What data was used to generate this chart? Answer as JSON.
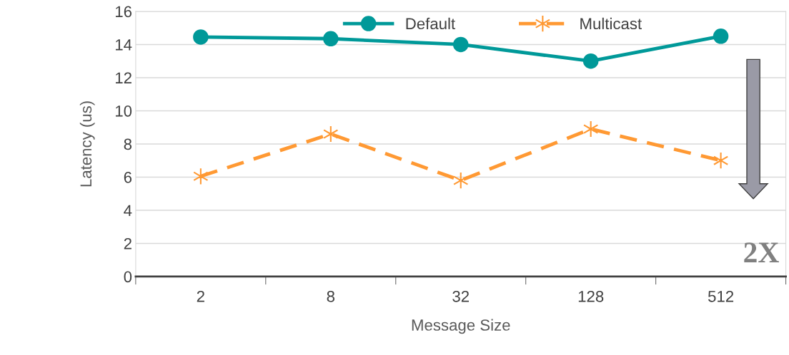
{
  "chart_data": {
    "type": "line",
    "xlabel": "Message Size",
    "ylabel": "Latency (us)",
    "categories": [
      "2",
      "8",
      "32",
      "128",
      "512"
    ],
    "series": [
      {
        "name": "Default",
        "color": "#009999",
        "values": [
          14.45,
          14.35,
          14.0,
          13.0,
          14.5
        ],
        "marker": "circle",
        "line_style": "solid"
      },
      {
        "name": "Multicast",
        "color": "#ff9933",
        "values": [
          6.05,
          8.6,
          5.8,
          8.9,
          7.0
        ],
        "marker": "cross",
        "line_style": "dashed"
      }
    ],
    "ylim": [
      0,
      16
    ],
    "yticks": [
      0,
      2,
      4,
      6,
      8,
      10,
      12,
      14,
      16
    ],
    "grid": "y",
    "legend": "top",
    "annotations": [
      "2X"
    ]
  }
}
